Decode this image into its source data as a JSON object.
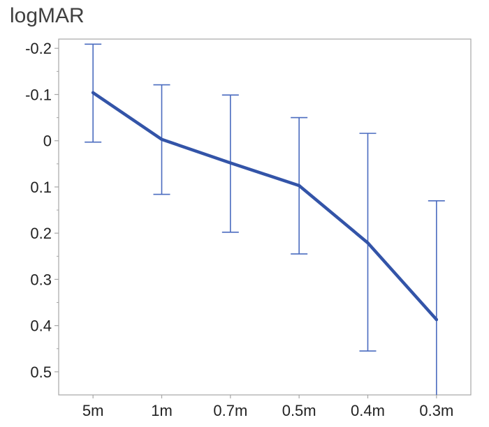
{
  "chart_data": {
    "type": "line",
    "title": "",
    "xlabel": "",
    "ylabel": "logMAR",
    "categories": [
      "5m",
      "1m",
      "0.7m",
      "0.5m",
      "0.4m",
      "0.3m"
    ],
    "y_tick_labels": [
      "-0.2",
      "-0.1",
      "0",
      "0.1",
      "0.2",
      "0.3",
      "0.4",
      "0.5"
    ],
    "y_ticks": [
      -0.2,
      -0.1,
      0,
      0.1,
      0.2,
      0.3,
      0.4,
      0.5
    ],
    "ylim": [
      -0.22,
      0.55
    ],
    "y_inverted": true,
    "grid": false,
    "series": [
      {
        "values": [
          -0.104,
          -0.003,
          0.048,
          0.097,
          0.221,
          0.387
        ],
        "error_low": [
          0.003,
          0.116,
          0.198,
          0.245,
          0.455,
          0.57
        ],
        "error_high": [
          -0.209,
          -0.121,
          -0.099,
          -0.05,
          -0.016,
          0.13
        ],
        "color": "#3354a8"
      }
    ],
    "errorbar_color": "#4a6bbf",
    "axis_color": "#a6a6a6"
  }
}
